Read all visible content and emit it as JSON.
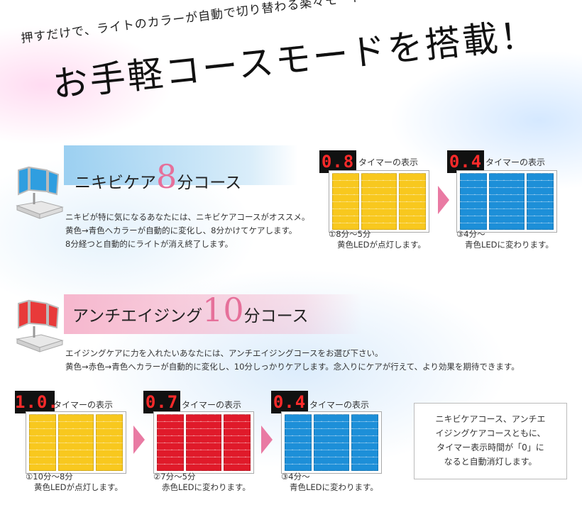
{
  "header": {
    "subtitle": "押すだけで、ライトのカラーが自動で切り替わる楽々モード",
    "title": "お手軽コースモードを搭載！"
  },
  "course1": {
    "name_pre": "ニキビケア",
    "num": "8",
    "name_post": "分コース",
    "device_color": "#2f9ee0",
    "desc": [
      "ニキビが特に気になるあなたには、ニキビケアコースがオススメ。",
      "黄色→青色へカラーが自動的に変化し、8分かけてケアします。",
      "8分経つと自動的にライトが消え終了します。"
    ],
    "steps": [
      {
        "timer": "0.8",
        "label": "タイマーの表示",
        "color": "yellow",
        "cap1": "①8分～5分",
        "cap2": "黄色LEDが点灯します。"
      },
      {
        "timer": "0.4",
        "label": "タイマーの表示",
        "color": "blue",
        "cap1": "③4分～",
        "cap2": "青色LEDに変わります。"
      }
    ]
  },
  "course2": {
    "name_pre": "アンチエイジング",
    "num": "10",
    "name_post": "分コース",
    "device_color": "#e83a3a",
    "desc": [
      "エイジングケアに力を入れたいあなたには、アンチエイジングコースをお選び下さい。",
      "黄色→赤色→青色へカラーが自動的に変化し、10分しっかりケアします。念入りにケアが行えて、より効果を期待できます。"
    ],
    "steps": [
      {
        "timer": "1.0.",
        "label": "タイマーの表示",
        "color": "yellow",
        "cap1": "①10分～8分",
        "cap2": "黄色LEDが点灯します。"
      },
      {
        "timer": "0.7",
        "label": "タイマーの表示",
        "color": "red",
        "cap1": "②7分～5分",
        "cap2": "赤色LEDに変わります。"
      },
      {
        "timer": "0.4",
        "label": "タイマーの表示",
        "color": "blue",
        "cap1": "③4分～",
        "cap2": "青色LEDに変わります。"
      }
    ]
  },
  "note": {
    "lines": [
      "ニキビケアコース、アンチエ",
      "イジングケアコースともに、",
      "タイマー表示時間が「0」に",
      "なると自動消灯します。"
    ]
  },
  "colors": {
    "accent_pink": "#e97aa3",
    "timer_red": "#ff2a2a",
    "led_yellow": "#f8c81e",
    "led_red": "#e01a2a",
    "led_blue": "#1d8fd8"
  }
}
